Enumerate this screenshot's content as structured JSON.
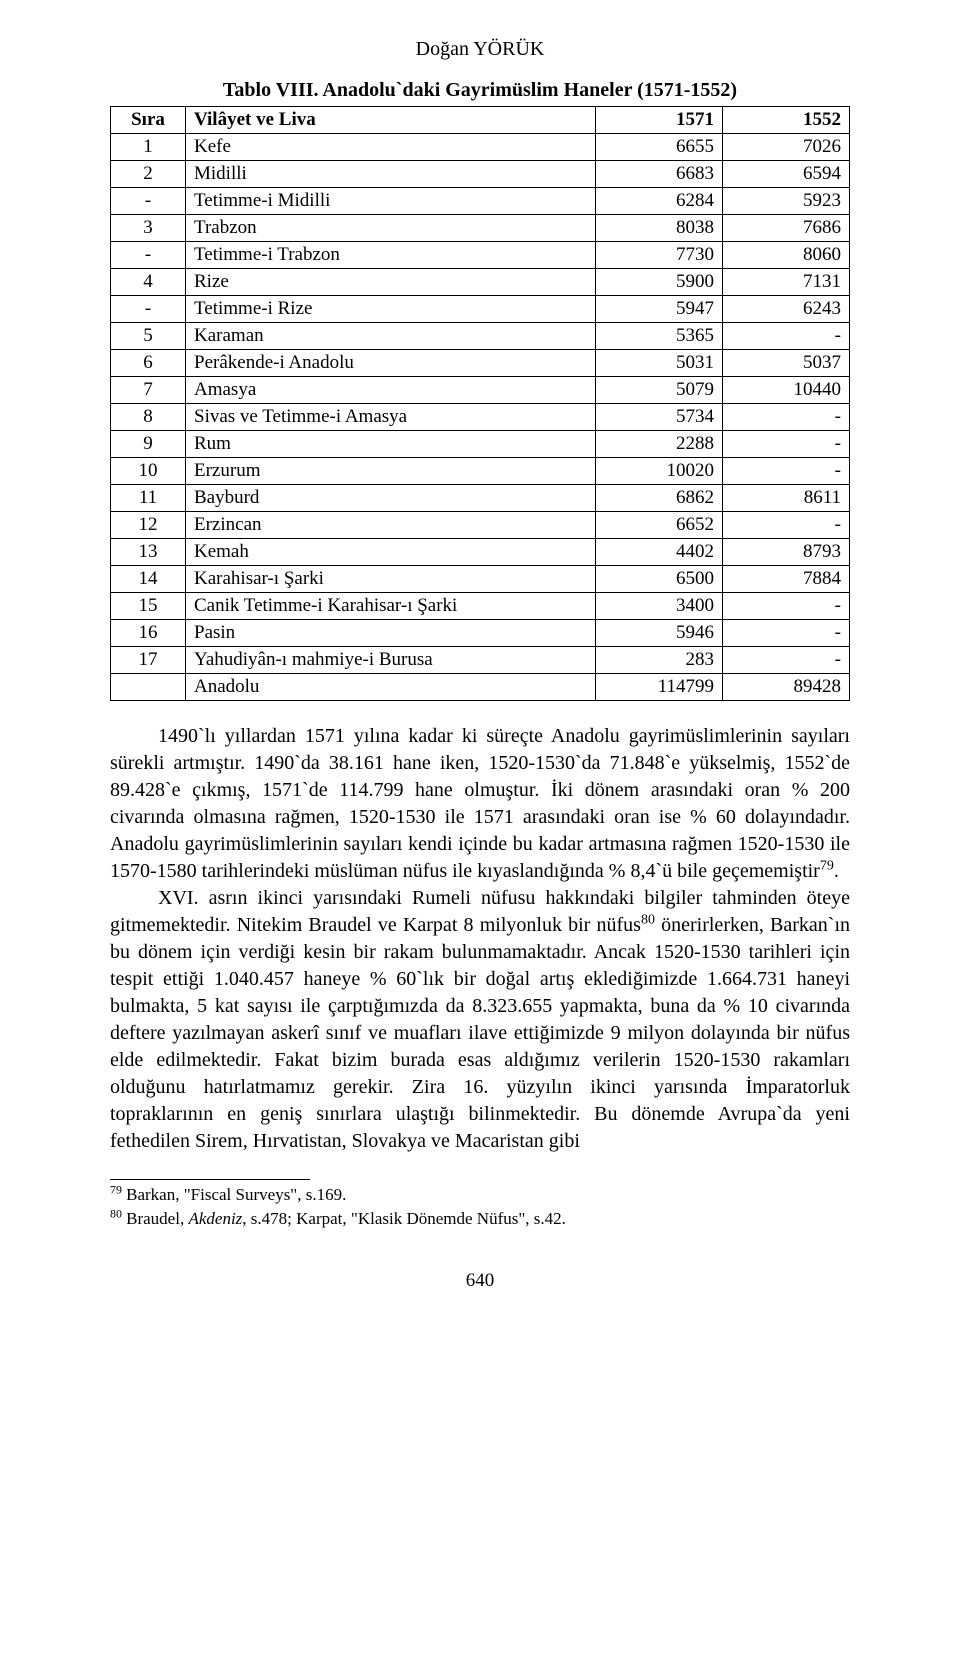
{
  "header_author": "Doğan YÖRÜK",
  "table": {
    "title": "Tablo VIII. Anadolu`daki Gayrimüslim Haneler (1571-1552)",
    "columns": [
      "Sıra",
      "Vilâyet ve Liva",
      "1571",
      "1552"
    ],
    "rows": [
      [
        "1",
        "Kefe",
        "6655",
        "7026"
      ],
      [
        "2",
        "Midilli",
        "6683",
        "6594"
      ],
      [
        "-",
        "Tetimme-i Midilli",
        "6284",
        "5923"
      ],
      [
        "3",
        "Trabzon",
        "8038",
        "7686"
      ],
      [
        "-",
        "Tetimme-i Trabzon",
        "7730",
        "8060"
      ],
      [
        "4",
        "Rize",
        "5900",
        "7131"
      ],
      [
        "-",
        "Tetimme-i Rize",
        "5947",
        "6243"
      ],
      [
        "5",
        "Karaman",
        "5365",
        "-"
      ],
      [
        "6",
        "Perâkende-i Anadolu",
        "5031",
        "5037"
      ],
      [
        "7",
        "Amasya",
        "5079",
        "10440"
      ],
      [
        "8",
        "Sivas ve Tetimme-i Amasya",
        "5734",
        "-"
      ],
      [
        "9",
        "Rum",
        "2288",
        "-"
      ],
      [
        "10",
        "Erzurum",
        "10020",
        "-"
      ],
      [
        "11",
        "Bayburd",
        "6862",
        "8611"
      ],
      [
        "12",
        "Erzincan",
        "6652",
        "-"
      ],
      [
        "13",
        "Kemah",
        "4402",
        "8793"
      ],
      [
        "14",
        "Karahisar-ı Şarki",
        "6500",
        "7884"
      ],
      [
        "15",
        "Canik Tetimme-i Karahisar-ı Şarki",
        "3400",
        "-"
      ],
      [
        "16",
        "Pasin",
        "5946",
        "-"
      ],
      [
        "17",
        "Yahudiyân-ı mahmiye-i Burusa",
        "283",
        "-"
      ],
      [
        "",
        "Anadolu",
        "114799",
        "89428"
      ]
    ]
  },
  "paragraphs": {
    "p1_a": "1490`lı yıllardan 1571 yılına kadar ki süreçte Anadolu gayrimüslimlerinin sayıları sürekli artmıştır. 1490`da 38.161 hane iken, 1520-1530`da 71.848`e yükselmiş, 1552`de 89.428`e çıkmış, 1571`de 114.799 hane olmuştur. İki dönem arasındaki oran % 200 civarında olmasına rağmen, 1520-1530 ile 1571 arasındaki oran ise % 60 dolayındadır. Anadolu gayrimüslimlerinin sayıları kendi içinde bu kadar artmasına rağmen 1520-1530 ile 1570-1580 tarihlerindeki müslüman nüfus ile kıyaslandığında % 8,4`ü bile geçememiştir",
    "p1_fn": "79",
    "p1_b": ".",
    "p2_a": "XVI. asrın ikinci yarısındaki Rumeli nüfusu hakkındaki bilgiler tahminden öteye gitmemektedir. Nitekim Braudel ve Karpat 8 milyonluk bir nüfus",
    "p2_fn": "80",
    "p2_b": " önerirlerken, Barkan`ın bu dönem için verdiği kesin bir rakam bulunmamaktadır. Ancak 1520-1530 tarihleri için tespit ettiği 1.040.457 haneye % 60`lık bir doğal artış eklediğimizde 1.664.731 haneyi bulmakta, 5 kat sayısı ile çarptığımızda da 8.323.655 yapmakta, buna da % 10 civarında deftere yazılmayan askerî sınıf ve muafları ilave ettiğimizde 9 milyon dolayında bir nüfus elde edilmektedir. Fakat bizim burada esas aldığımız verilerin 1520-1530 rakamları olduğunu hatırlatmamız gerekir. Zira 16. yüzyılın ikinci yarısında İmparatorluk topraklarının en geniş sınırlara ulaştığı bilinmektedir. Bu dönemde Avrupa`da yeni fethedilen Sirem, Hırvatistan, Slovakya ve Macaristan gibi"
  },
  "footnotes": {
    "f79_num": "79",
    "f79_text": " Barkan, \"Fiscal Surveys\", s.169.",
    "f80_num": "80",
    "f80_a": " Braudel, ",
    "f80_italic": "Akdeniz",
    "f80_b": ", s.478; Karpat, \"Klasik Dönemde Nüfus\", s.42."
  },
  "page_number": "640"
}
